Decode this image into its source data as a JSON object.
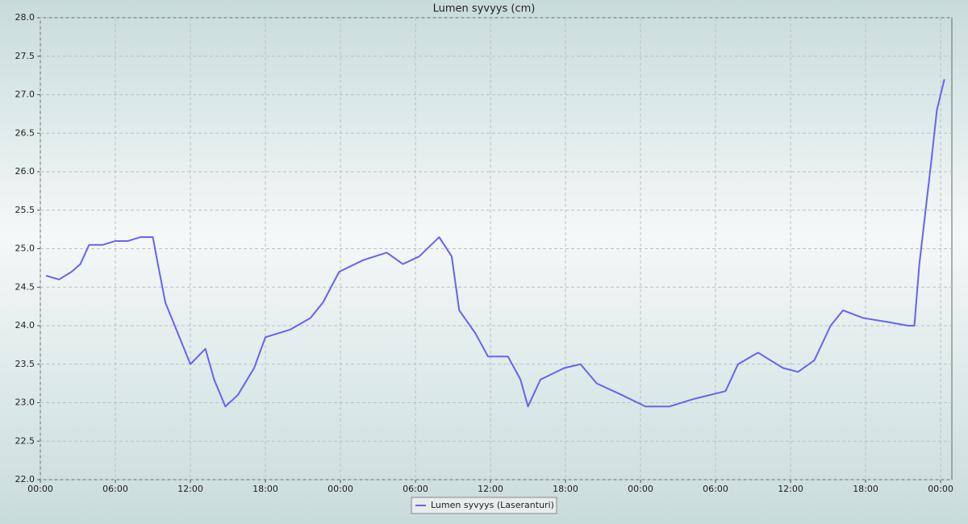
{
  "chart_data": {
    "type": "line",
    "title": "Lumen syvyys (cm)",
    "x": [
      0.45,
      1.5,
      2.5,
      3.2,
      3.9,
      5,
      6,
      7,
      8,
      9,
      9.4,
      10,
      11,
      12,
      13.2,
      13.9,
      14.8,
      15.8,
      17.1,
      18,
      20,
      21.6,
      22.6,
      23.9,
      25.8,
      27.7,
      29,
      30.3,
      31.9,
      32.9,
      33.5,
      34.8,
      35.8,
      37.4,
      38.4,
      39,
      40,
      41.9,
      43.2,
      44.5,
      46.5,
      48.4,
      50.3,
      52.3,
      54.8,
      55.8,
      57.4,
      59.4,
      60.6,
      61.9,
      63.2,
      64.2,
      65.8,
      67.7,
      69.4,
      69.9,
      70.3,
      70.8,
      71.3,
      71.7,
      72.3
    ],
    "series": [
      {
        "name": "Lumen syvyys (Laseranturi)",
        "color": "#6464f0",
        "values": [
          24.65,
          24.6,
          24.7,
          24.8,
          25.05,
          25.05,
          25.1,
          25.1,
          25.15,
          25.15,
          24.8,
          24.3,
          23.9,
          23.5,
          23.7,
          23.3,
          22.95,
          23.1,
          23.45,
          23.85,
          23.95,
          24.1,
          24.3,
          24.7,
          24.85,
          24.95,
          24.8,
          24.9,
          25.15,
          24.9,
          24.2,
          23.9,
          23.6,
          23.6,
          23.3,
          22.95,
          23.3,
          23.45,
          23.5,
          23.25,
          23.1,
          22.95,
          22.95,
          23.05,
          23.15,
          23.5,
          23.65,
          23.45,
          23.4,
          23.55,
          24.0,
          24.2,
          24.1,
          24.05,
          24.0,
          24.0,
          24.8,
          25.5,
          26.2,
          26.8,
          27.2
        ]
      }
    ],
    "xlim": [
      0,
      72.9
    ],
    "xticks": [
      {
        "value": 0,
        "label": "00:00"
      },
      {
        "value": 6,
        "label": "06:00"
      },
      {
        "value": 12,
        "label": "12:00"
      },
      {
        "value": 18,
        "label": "18:00"
      },
      {
        "value": 24,
        "label": "00:00"
      },
      {
        "value": 30,
        "label": "06:00"
      },
      {
        "value": 36,
        "label": "12:00"
      },
      {
        "value": 42,
        "label": "18:00"
      },
      {
        "value": 48,
        "label": "00:00"
      },
      {
        "value": 54,
        "label": "06:00"
      },
      {
        "value": 60,
        "label": "12:00"
      },
      {
        "value": 66,
        "label": "18:00"
      },
      {
        "value": 72,
        "label": "00:00"
      }
    ],
    "ylim": [
      22,
      28
    ],
    "yticks": [
      {
        "value": 22,
        "label": "22.0"
      },
      22.5,
      {
        "value": 23,
        "label": "23.0"
      },
      23.5,
      {
        "value": 24,
        "label": "24.0"
      },
      24.5,
      {
        "value": 25,
        "label": "25.0"
      },
      25.5,
      {
        "value": 26,
        "label": "26.0"
      },
      26.5,
      {
        "value": 27,
        "label": "27.0"
      },
      27.5,
      {
        "value": 28,
        "label": "28.0"
      }
    ],
    "grid": true
  }
}
